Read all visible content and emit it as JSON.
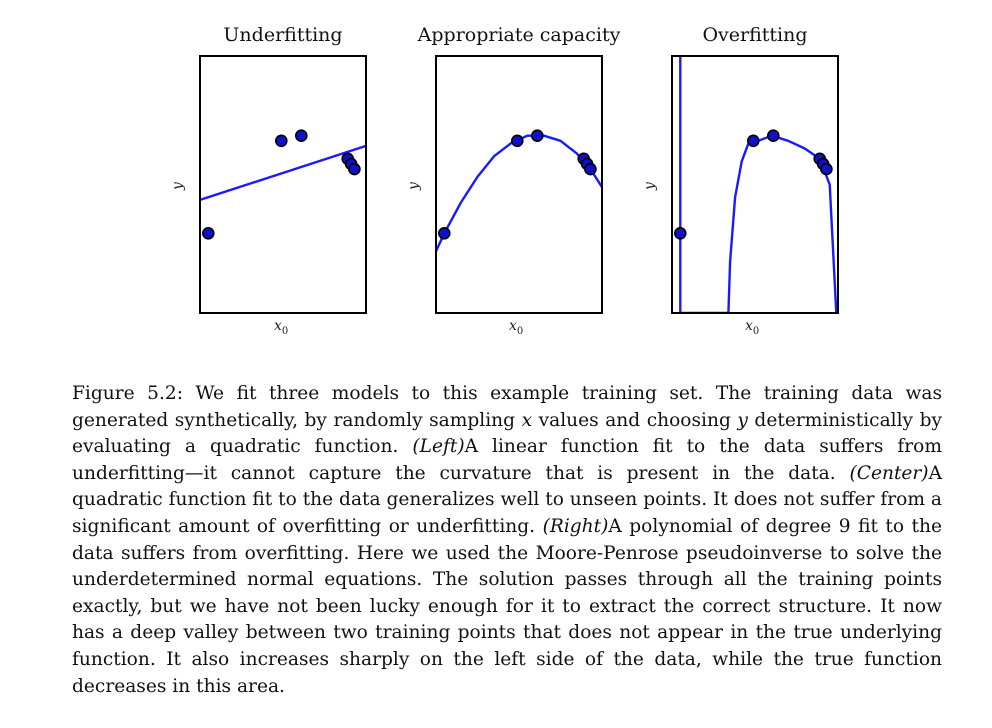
{
  "figure": {
    "panels": [
      {
        "title": "Underfitting",
        "xlabel": "x",
        "xlabel_sub": "0",
        "ylabel": "y"
      },
      {
        "title": "Appropriate capacity",
        "xlabel": "x",
        "xlabel_sub": "0",
        "ylabel": "y"
      },
      {
        "title": "Overfitting",
        "xlabel": "x",
        "xlabel_sub": "0",
        "ylabel": "y"
      }
    ],
    "colors": {
      "curve": "#1a1aff",
      "point_fill": "#1010c8",
      "point_edge": "#000000",
      "frame": "#000000"
    }
  },
  "chart_data": [
    {
      "type": "scatter",
      "title": "Underfitting",
      "xlabel": "x0",
      "ylabel": "y",
      "xlim": [
        0,
        1
      ],
      "ylim": [
        0,
        1
      ],
      "points": [
        [
          0.05,
          0.31
        ],
        [
          0.49,
          0.67
        ],
        [
          0.61,
          0.69
        ],
        [
          0.89,
          0.6
        ],
        [
          0.91,
          0.58
        ],
        [
          0.93,
          0.56
        ]
      ],
      "fit": {
        "kind": "linear",
        "curve": [
          [
            0,
            0.44
          ],
          [
            1,
            0.65
          ]
        ]
      }
    },
    {
      "type": "scatter",
      "title": "Appropriate capacity",
      "xlabel": "x0",
      "ylabel": "y",
      "xlim": [
        0,
        1
      ],
      "ylim": [
        0,
        1
      ],
      "points": [
        [
          0.05,
          0.31
        ],
        [
          0.49,
          0.67
        ],
        [
          0.61,
          0.69
        ],
        [
          0.89,
          0.6
        ],
        [
          0.91,
          0.58
        ],
        [
          0.93,
          0.56
        ]
      ],
      "fit": {
        "kind": "quadratic",
        "curve": [
          [
            0,
            0.24
          ],
          [
            0.05,
            0.31
          ],
          [
            0.15,
            0.43
          ],
          [
            0.25,
            0.53
          ],
          [
            0.35,
            0.61
          ],
          [
            0.45,
            0.66
          ],
          [
            0.55,
            0.69
          ],
          [
            0.65,
            0.69
          ],
          [
            0.75,
            0.67
          ],
          [
            0.85,
            0.62
          ],
          [
            0.95,
            0.54
          ],
          [
            1,
            0.49
          ]
        ]
      }
    },
    {
      "type": "scatter",
      "title": "Overfitting",
      "xlabel": "x0",
      "ylabel": "y",
      "xlim": [
        0,
        1
      ],
      "ylim": [
        0,
        1
      ],
      "points": [
        [
          0.05,
          0.31
        ],
        [
          0.49,
          0.67
        ],
        [
          0.61,
          0.69
        ],
        [
          0.89,
          0.6
        ],
        [
          0.91,
          0.58
        ],
        [
          0.93,
          0.56
        ]
      ],
      "fit": {
        "kind": "degree-9 polynomial",
        "curve": [
          [
            0.05,
            1.0
          ],
          [
            0.05,
            0.31
          ],
          [
            0.05,
            0.0
          ],
          [
            0.34,
            0.0
          ],
          [
            0.35,
            0.2
          ],
          [
            0.38,
            0.45
          ],
          [
            0.42,
            0.59
          ],
          [
            0.46,
            0.66
          ],
          [
            0.52,
            0.67
          ],
          [
            0.6,
            0.69
          ],
          [
            0.7,
            0.67
          ],
          [
            0.8,
            0.64
          ],
          [
            0.89,
            0.6
          ],
          [
            0.95,
            0.5
          ],
          [
            0.99,
            0.0
          ]
        ]
      }
    }
  ],
  "caption": {
    "p1": "Figure 5.2: We fit three models to this example training set. The training data was generated synthetically, by randomly sampling ",
    "var_x": "x",
    "p2": " values and choosing ",
    "var_y": "y",
    "p3": " deterministically by evaluating a quadratic function. ",
    "left": "(Left)",
    "p4": "A linear function fit to the data suffers from underfitting—it cannot capture the curvature that is present in the data. ",
    "center": "(Center)",
    "p5": "A quadratic function fit to the data generalizes well to unseen points. It does not suffer from a significant amount of overfitting or underfitting. ",
    "right": "(Right)",
    "p6": "A polynomial of degree 9 fit to the data suffers from overfitting. Here we used the Moore-Penrose pseudoinverse to solve the underdetermined normal equations. The solution passes through all the training points exactly, but we have not been lucky enough for it to extract the correct structure. It now has a deep valley between two training points that does not appear in the true underlying function. It also increases sharply on the left side of the data, while the true function decreases in this area."
  }
}
